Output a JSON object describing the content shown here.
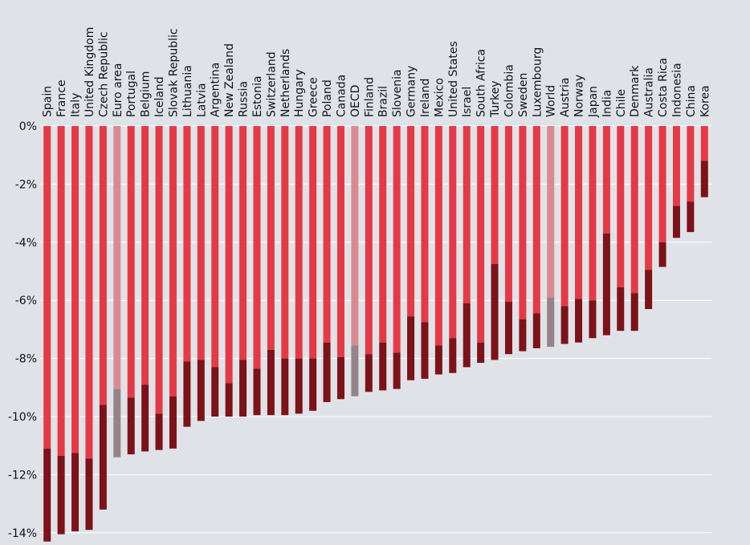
{
  "chart_data": {
    "type": "bar",
    "stacked": true,
    "ylim": [
      -14.5,
      0
    ],
    "yticks": [
      0,
      -2,
      -4,
      -6,
      -8,
      -10,
      -12,
      -14
    ],
    "ytick_labels": [
      "0%",
      "-2%",
      "-4%",
      "-6%",
      "-8%",
      "-10%",
      "-12%",
      "-14%"
    ],
    "grid": true,
    "colors": {
      "light": "#e63946",
      "dark": "#7d1218",
      "light_aggregate": "#d98a91",
      "dark_aggregate": "#96838a",
      "background": "#dfe3e8"
    },
    "aggregates": [
      "Euro area",
      "OECD",
      "World"
    ],
    "categories": [
      "Spain",
      "France",
      "Italy",
      "United Kingdom",
      "Czech Republic",
      "Euro area",
      "Portugal",
      "Belgium",
      "Iceland",
      "Slovak Republic",
      "Lithuania",
      "Latvia",
      "Argentina",
      "New Zealand",
      "Russia",
      "Estonia",
      "Switzerland",
      "Netherlands",
      "Hungary",
      "Greece",
      "Poland",
      "Canada",
      "OECD",
      "Finland",
      "Brazil",
      "Slovenia",
      "Germany",
      "Ireland",
      "Mexico",
      "United States",
      "Israel",
      "South Africa",
      "Turkey",
      "Colombia",
      "Sweden",
      "Luxembourg",
      "World",
      "Austria",
      "Norway",
      "Japan",
      "India",
      "Chile",
      "Denmark",
      "Australia",
      "Costa Rica",
      "Indonesia",
      "China",
      "Korea"
    ],
    "series": [
      {
        "values": [
          -11.1,
          -11.35,
          -11.25,
          -11.45,
          -9.6,
          -9.05,
          -9.35,
          -8.9,
          -9.9,
          -9.3,
          -8.1,
          -8.05,
          -8.3,
          -8.85,
          -8.05,
          -8.35,
          -7.7,
          -8.0,
          -8.0,
          -8.0,
          -7.45,
          -7.95,
          -7.55,
          -7.85,
          -7.45,
          -7.8,
          -6.55,
          -6.75,
          -7.55,
          -7.3,
          -6.1,
          -7.45,
          -4.75,
          -6.05,
          -6.65,
          -6.45,
          -5.9,
          -6.2,
          -5.95,
          -6.0,
          -3.7,
          -5.55,
          -5.75,
          -4.95,
          -4.0,
          -2.75,
          -2.6,
          -1.2
        ]
      },
      {
        "values": [
          -3.2,
          -2.7,
          -2.7,
          -2.45,
          -3.6,
          -2.35,
          -1.95,
          -2.3,
          -1.25,
          -1.8,
          -2.25,
          -2.1,
          -1.7,
          -1.15,
          -1.95,
          -1.6,
          -2.25,
          -1.95,
          -1.9,
          -1.8,
          -2.05,
          -1.45,
          -1.75,
          -1.3,
          -1.65,
          -1.25,
          -2.2,
          -1.95,
          -1.0,
          -1.2,
          -2.2,
          -0.7,
          -3.3,
          -1.8,
          -1.1,
          -1.2,
          -1.7,
          -1.3,
          -1.5,
          -1.3,
          -3.5,
          -1.5,
          -1.3,
          -1.35,
          -0.85,
          -1.1,
          -1.05,
          -1.25
        ]
      }
    ]
  }
}
